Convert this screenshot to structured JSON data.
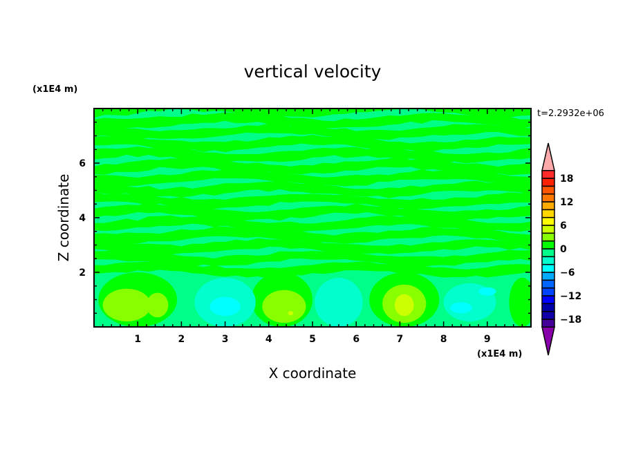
{
  "chart_data": {
    "type": "contour",
    "title": "vertical velocity",
    "xlabel": "X coordinate",
    "ylabel": "Z coordinate",
    "x_unit": "(x1E4 m)",
    "y_unit": "(x1E4 m)",
    "time_label": "t=2.2932e+06",
    "xlim": [
      0,
      10
    ],
    "ylim": [
      0,
      8
    ],
    "x_ticks": [
      1,
      2,
      3,
      4,
      5,
      6,
      7,
      8,
      9
    ],
    "y_ticks": [
      2,
      4,
      6
    ],
    "grid": false,
    "colorbar": {
      "levels": [
        -20,
        -18,
        -16,
        -14,
        -12,
        -10,
        -8,
        -6,
        -4,
        -2,
        0,
        2,
        4,
        6,
        8,
        10,
        12,
        14,
        16,
        18,
        20
      ],
      "tick_labels": [
        "18",
        "12",
        "6",
        "0",
        "-6",
        "-12",
        "-18"
      ],
      "tick_values": [
        18,
        12,
        6,
        0,
        -6,
        -12,
        -18
      ],
      "colors": [
        "#440099",
        "#1100aa",
        "#0000aa",
        "#0000ff",
        "#0044ff",
        "#0066ff",
        "#00aaff",
        "#00ffff",
        "#00ffcc",
        "#00ff88",
        "#00ff00",
        "#88ff00",
        "#ccff00",
        "#ffff00",
        "#ffd700",
        "#ffaa00",
        "#ff7700",
        "#ff5500",
        "#ff2200",
        "#ff2a2a"
      ],
      "over_color": "#ffaaaa",
      "under_color": "#8800aa",
      "placement": "right"
    },
    "field_features": {
      "upper_region": "alternating horizontal bands of 0..2 and -2..0 above z=2",
      "cells": [
        {
          "x": 1.0,
          "z": 1.0,
          "rx": 0.9,
          "rz": 1.0,
          "value": 1
        },
        {
          "x": 4.3,
          "z": 1.0,
          "rx": 0.7,
          "rz": 1.0,
          "value": 1
        },
        {
          "x": 7.1,
          "z": 1.0,
          "rx": 0.8,
          "rz": 1.0,
          "value": 1
        },
        {
          "x": 9.8,
          "z": 0.9,
          "rx": 0.3,
          "rz": 0.9,
          "value": 1
        },
        {
          "x": 3.0,
          "z": 0.9,
          "rx": 0.7,
          "rz": 0.9,
          "value": -3
        },
        {
          "x": 5.6,
          "z": 0.9,
          "rx": 0.55,
          "rz": 0.9,
          "value": -3
        },
        {
          "x": 8.6,
          "z": 0.9,
          "rx": 0.6,
          "rz": 0.7,
          "value": -3
        },
        {
          "x": 0.75,
          "z": 0.8,
          "rx": 0.55,
          "rz": 0.6,
          "value": 3
        },
        {
          "x": 1.45,
          "z": 0.8,
          "rx": 0.25,
          "rz": 0.45,
          "value": 3
        },
        {
          "x": 4.35,
          "z": 0.75,
          "rx": 0.5,
          "rz": 0.6,
          "value": 3
        },
        {
          "x": 7.1,
          "z": 0.85,
          "rx": 0.5,
          "rz": 0.7,
          "value": 3
        },
        {
          "x": 7.1,
          "z": 0.8,
          "rx": 0.22,
          "rz": 0.4,
          "value": 5
        },
        {
          "x": 4.5,
          "z": 0.5,
          "rx": 0.06,
          "rz": 0.08,
          "value": 5
        },
        {
          "x": 3.0,
          "z": 0.75,
          "rx": 0.35,
          "rz": 0.35,
          "value": -5
        },
        {
          "x": 8.4,
          "z": 0.7,
          "rx": 0.25,
          "rz": 0.2,
          "value": -5
        },
        {
          "x": 9.0,
          "z": 1.3,
          "rx": 0.2,
          "rz": 0.15,
          "value": -5
        }
      ]
    }
  }
}
